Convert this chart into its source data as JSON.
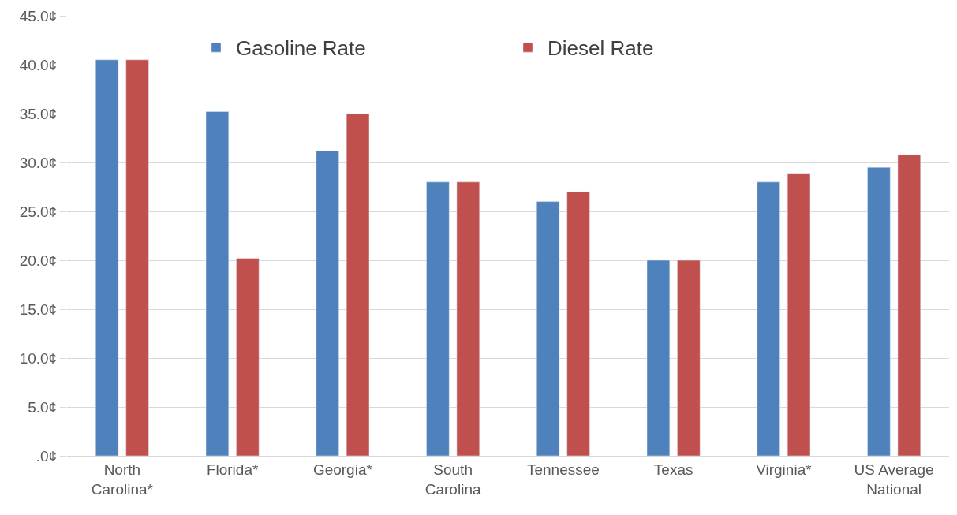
{
  "chart_data": {
    "type": "bar",
    "categories": [
      "North\nCarolina*",
      "Florida*",
      "Georgia*",
      "South\nCarolina",
      "Tennessee",
      "Texas",
      "Virginia*",
      "US Average\nNational"
    ],
    "series": [
      {
        "name": "Gasoline Rate",
        "color": "#4f81bd",
        "values": [
          40.5,
          35.2,
          31.2,
          28,
          26,
          20,
          28,
          29.5
        ]
      },
      {
        "name": "Diesel Rate",
        "color": "#c0504d",
        "values": [
          40.5,
          20.2,
          35,
          28,
          27,
          20,
          28.9,
          30.8
        ]
      }
    ],
    "ylim": [
      0,
      45
    ],
    "yticks": [
      {
        "value": 0,
        "label": ".0¢"
      },
      {
        "value": 5,
        "label": "5.0¢"
      },
      {
        "value": 10,
        "label": "10.0¢"
      },
      {
        "value": 15,
        "label": "15.0¢"
      },
      {
        "value": 20,
        "label": "20.0¢"
      },
      {
        "value": 25,
        "label": "25.0¢"
      },
      {
        "value": 30,
        "label": "30.0¢"
      },
      {
        "value": 35,
        "label": "35.0¢"
      },
      {
        "value": 40,
        "label": "40.0¢"
      },
      {
        "value": 45,
        "label": "45.0¢"
      }
    ],
    "grid": "y",
    "legend": "top"
  }
}
